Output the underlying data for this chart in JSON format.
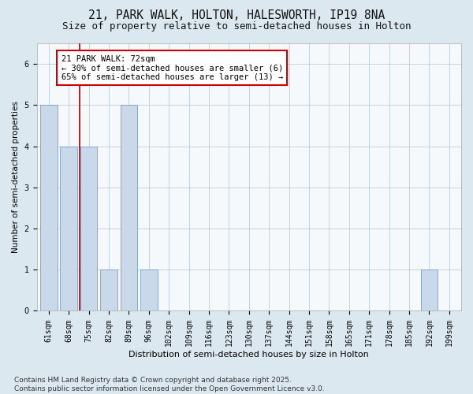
{
  "title1": "21, PARK WALK, HOLTON, HALESWORTH, IP19 8NA",
  "title2": "Size of property relative to semi-detached houses in Holton",
  "xlabel": "Distribution of semi-detached houses by size in Holton",
  "ylabel": "Number of semi-detached properties",
  "categories": [
    "61sqm",
    "68sqm",
    "75sqm",
    "82sqm",
    "89sqm",
    "96sqm",
    "102sqm",
    "109sqm",
    "116sqm",
    "123sqm",
    "130sqm",
    "137sqm",
    "144sqm",
    "151sqm",
    "158sqm",
    "165sqm",
    "171sqm",
    "178sqm",
    "185sqm",
    "192sqm",
    "199sqm"
  ],
  "values": [
    5,
    4,
    4,
    1,
    5,
    1,
    0,
    0,
    0,
    0,
    0,
    0,
    0,
    0,
    0,
    0,
    0,
    0,
    0,
    1,
    0
  ],
  "bar_color": "#c9d9ea",
  "bar_edge_color": "#7aa0c0",
  "highlight_color": "#aa0000",
  "annotation_text": "21 PARK WALK: 72sqm\n← 30% of semi-detached houses are smaller (6)\n65% of semi-detached houses are larger (13) →",
  "annotation_box_color": "#ffffff",
  "annotation_box_edge": "#cc0000",
  "ylim_max": 6.5,
  "yticks": [
    0,
    1,
    2,
    3,
    4,
    5,
    6
  ],
  "footnote": "Contains HM Land Registry data © Crown copyright and database right 2025.\nContains public sector information licensed under the Open Government Licence v3.0.",
  "background_color": "#dce8f0",
  "plot_background": "#f5f9fc",
  "title1_fontsize": 10.5,
  "title2_fontsize": 9,
  "xlabel_fontsize": 8,
  "ylabel_fontsize": 7.5,
  "tick_fontsize": 7,
  "annotation_fontsize": 7.5,
  "footnote_fontsize": 6.5,
  "red_line_x": 1.55
}
